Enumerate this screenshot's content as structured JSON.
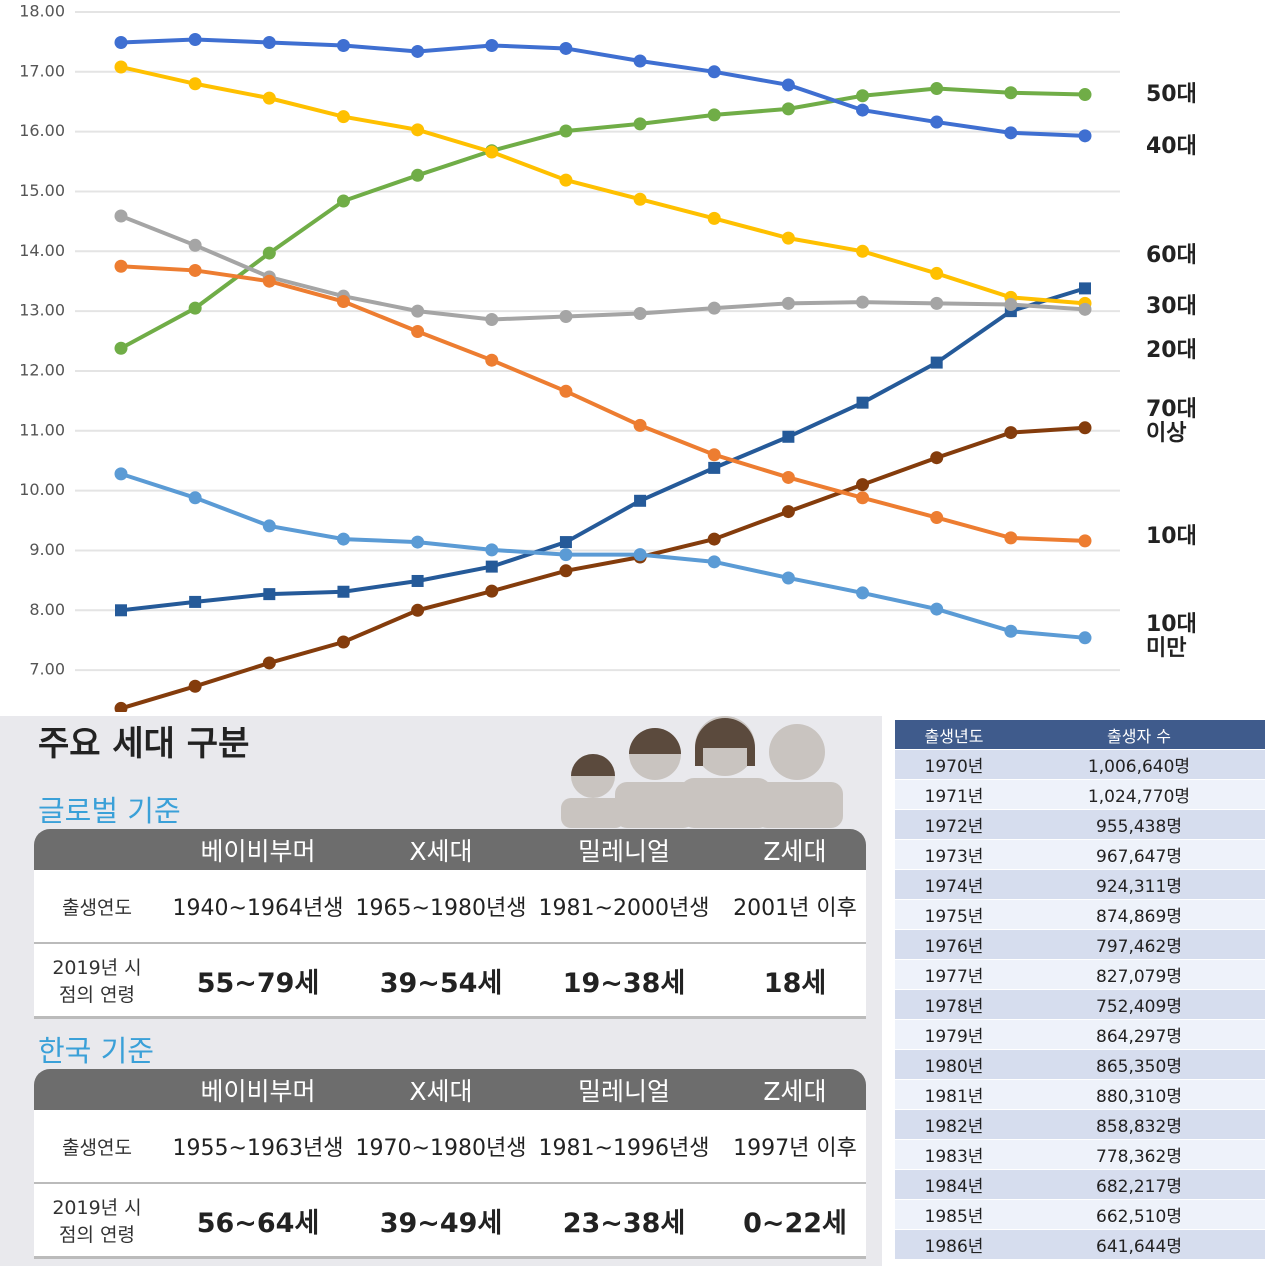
{
  "chart_data": {
    "type": "line",
    "categories": [
      null,
      null,
      null,
      null,
      null,
      null,
      null,
      null,
      null,
      null,
      null,
      null,
      null,
      null
    ],
    "ylim": [
      6.3,
      18.2
    ],
    "yticks": [
      {
        "value": 7,
        "label": "7.00"
      },
      {
        "value": 8,
        "label": "8.00"
      },
      {
        "value": 9,
        "label": "9.00"
      },
      {
        "value": 10,
        "label": "10.00"
      },
      {
        "value": 11,
        "label": "11.00"
      },
      {
        "value": 12,
        "label": "12.00"
      },
      {
        "value": 13,
        "label": "13.00"
      },
      {
        "value": 14,
        "label": "14.00"
      },
      {
        "value": 15,
        "label": "15.00"
      },
      {
        "value": 16,
        "label": "16.00"
      },
      {
        "value": 17,
        "label": "17.00"
      },
      {
        "value": 18,
        "label": "18.00"
      }
    ],
    "grid": true,
    "series": [
      {
        "name": "50대",
        "color": "#70ad47",
        "values": [
          12.38,
          13.05,
          13.97,
          14.84,
          15.27,
          15.68,
          16.01,
          16.13,
          16.28,
          16.38,
          16.6,
          16.72,
          16.65,
          16.62
        ]
      },
      {
        "name": "40대",
        "color": "#3f6fd1",
        "values": [
          17.49,
          17.54,
          17.49,
          17.44,
          17.34,
          17.44,
          17.39,
          17.18,
          17.0,
          16.78,
          16.36,
          16.16,
          15.98,
          15.93
        ]
      },
      {
        "name": "60대",
        "color": "#255a99",
        "marker": "square",
        "values": [
          8.0,
          8.14,
          8.27,
          8.31,
          8.49,
          8.73,
          9.14,
          9.83,
          10.38,
          10.9,
          11.47,
          12.14,
          13.0,
          13.38
        ]
      },
      {
        "name": "30대",
        "color": "#ffc000",
        "values": [
          17.08,
          16.8,
          16.56,
          16.25,
          16.03,
          15.66,
          15.19,
          14.87,
          14.55,
          14.22,
          14.0,
          13.63,
          13.23,
          13.13
        ]
      },
      {
        "name": "20대",
        "color": "#a5a5a5",
        "values": [
          14.59,
          14.1,
          13.57,
          13.25,
          13.0,
          12.86,
          12.91,
          12.96,
          13.05,
          13.13,
          13.15,
          13.13,
          13.11,
          13.03
        ]
      },
      {
        "name": "70대 이상",
        "color": "#843c0c",
        "values": [
          6.36,
          6.73,
          7.12,
          7.47,
          8.0,
          8.32,
          8.66,
          8.89,
          9.19,
          9.65,
          10.1,
          10.55,
          10.97,
          11.05
        ]
      },
      {
        "name": "10대",
        "color": "#ed7d31",
        "values": [
          13.75,
          13.68,
          13.5,
          13.16,
          12.66,
          12.18,
          11.66,
          11.09,
          10.6,
          10.22,
          9.88,
          9.55,
          9.21,
          9.16
        ]
      },
      {
        "name": "10대 미만",
        "color": "#5b9bd5",
        "values": [
          10.28,
          9.88,
          9.41,
          9.19,
          9.14,
          9.01,
          8.93,
          8.93,
          8.81,
          8.54,
          8.29,
          8.02,
          7.65,
          7.54
        ]
      }
    ]
  },
  "generations": {
    "title": "주요 세대 구분",
    "sections": [
      {
        "title": "글로벌 기준",
        "header": [
          "베이비부머",
          "X세대",
          "밀레니얼",
          "Z세대"
        ],
        "rows": [
          {
            "label": "출생연도",
            "cells": [
              "1940~1964년생",
              "1965~1980년생",
              "1981~2000년생",
              "2001년 이후"
            ]
          },
          {
            "label": "2019년 시점의 연령",
            "cells": [
              "55~79세",
              "39~54세",
              "19~38세",
              "18세"
            ]
          }
        ]
      },
      {
        "title": "한국 기준",
        "header": [
          "베이비부머",
          "X세대",
          "밀레니얼",
          "Z세대"
        ],
        "rows": [
          {
            "label": "출생연도",
            "cells": [
              "1955~1963년생",
              "1970~1980년생",
              "1981~1996년생",
              "1997년 이후"
            ]
          },
          {
            "label": "2019년 시점의 연령",
            "cells": [
              "56~64세",
              "39~49세",
              "23~38세",
              "0~22세"
            ]
          }
        ]
      }
    ]
  },
  "births": {
    "header": [
      "출생년도",
      "출생자 수"
    ],
    "rows": [
      [
        "1970년",
        "1,006,640명"
      ],
      [
        "1971년",
        "1,024,770명"
      ],
      [
        "1972년",
        "955,438명"
      ],
      [
        "1973년",
        "967,647명"
      ],
      [
        "1974년",
        "924,311명"
      ],
      [
        "1975년",
        "874,869명"
      ],
      [
        "1976년",
        "797,462명"
      ],
      [
        "1977년",
        "827,079명"
      ],
      [
        "1978년",
        "752,409명"
      ],
      [
        "1979년",
        "864,297명"
      ],
      [
        "1980년",
        "865,350명"
      ],
      [
        "1981년",
        "880,310명"
      ],
      [
        "1982년",
        "858,832명"
      ],
      [
        "1983년",
        "778,362명"
      ],
      [
        "1984년",
        "682,217명"
      ],
      [
        "1985년",
        "662,510명"
      ],
      [
        "1986년",
        "641,644명"
      ]
    ]
  }
}
